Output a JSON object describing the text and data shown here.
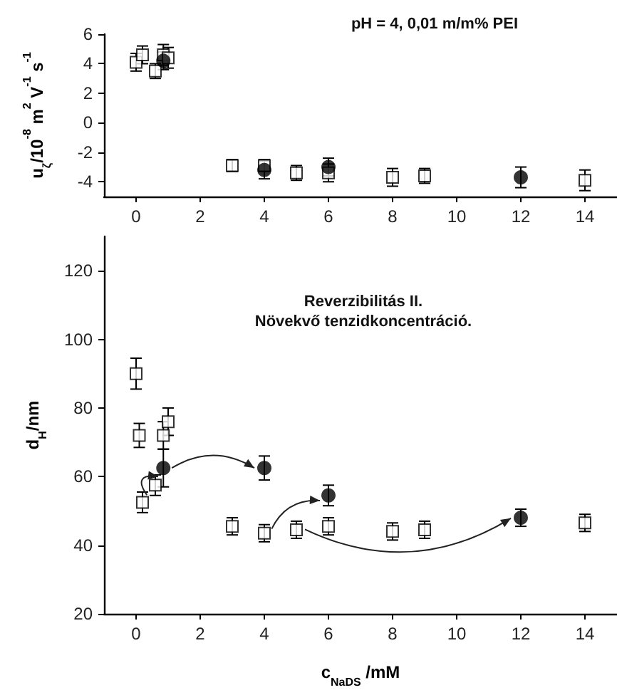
{
  "chart_data": [
    {
      "type": "scatter",
      "title": "pH = 4, 0,01 m/m% PEI",
      "ylabel": "u$_{ζ}$/10$^{-8}$ m$^{2}$ V$^{-1}$ s$^{-1}$",
      "xlim": [
        -1,
        15
      ],
      "xticks": [
        0,
        2,
        4,
        6,
        8,
        10,
        12,
        14
      ],
      "ylim": [
        -5,
        6
      ],
      "yticks": [
        -4,
        -2,
        0,
        2,
        4,
        6
      ],
      "grid": false,
      "series": [
        {
          "color": "#000000",
          "marker": "square",
          "x": [
            0,
            0.2,
            0.6,
            0.85,
            1,
            3,
            4,
            5,
            6,
            8,
            9,
            14
          ],
          "values": [
            4.1,
            4.6,
            3.5,
            4.6,
            4.4,
            -2.9,
            -2.9,
            -3.4,
            -3.4,
            -3.7,
            -3.6,
            -3.9
          ],
          "errors": [
            0.6,
            0.6,
            0.5,
            0.7,
            0.7,
            0.4,
            0.4,
            0.5,
            0.6,
            0.6,
            0.5,
            0.7
          ]
        },
        {
          "color": "#000000",
          "marker": "circle",
          "x": [
            0.85,
            4,
            6,
            12
          ],
          "values": [
            4.2,
            -3.2,
            -3.0,
            -3.7
          ],
          "errors": [
            0.6,
            0.6,
            0.6,
            0.7
          ]
        }
      ]
    },
    {
      "type": "scatter",
      "title": "Reverzibilitás II.\nNövekvő tenzidkoncentráció.",
      "xlabel": "c$_{NaDS}$ /mM",
      "ylabel": "d$_{H}$/nm",
      "xlim": [
        -1,
        15
      ],
      "xticks": [
        0,
        2,
        4,
        6,
        8,
        10,
        12,
        14
      ],
      "ylim": [
        20,
        130
      ],
      "yticks": [
        20,
        40,
        60,
        80,
        100,
        120
      ],
      "grid": false,
      "series": [
        {
          "color": "#000000",
          "marker": "square",
          "x": [
            0,
            0.1,
            0.2,
            0.6,
            0.85,
            1,
            3,
            4,
            5,
            6,
            8,
            9,
            14
          ],
          "values": [
            90,
            72,
            52.5,
            57.5,
            72,
            76,
            45.5,
            43.5,
            44.5,
            45.5,
            44,
            44.5,
            46.5
          ],
          "errors": [
            4.5,
            3.5,
            3,
            3,
            4,
            4,
            2.5,
            2.5,
            2.5,
            2.5,
            2.5,
            2.5,
            2.5
          ]
        },
        {
          "color": "#000000",
          "marker": "circle",
          "x": [
            0.85,
            4,
            6,
            12
          ],
          "values": [
            62.5,
            62.5,
            54.5,
            48
          ],
          "errors": [
            5.5,
            3.5,
            3,
            2.5
          ]
        }
      ]
    }
  ]
}
